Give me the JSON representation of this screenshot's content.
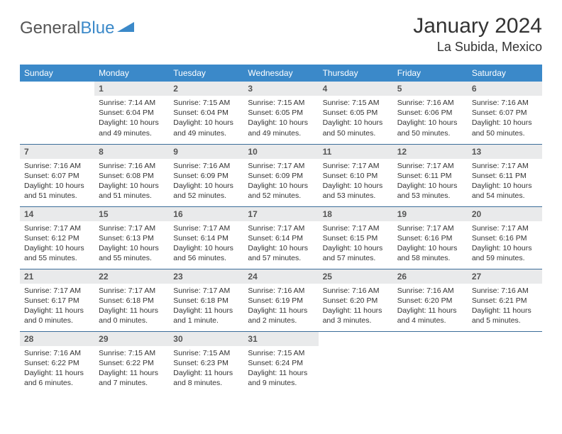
{
  "logo": {
    "text1": "General",
    "text2": "Blue"
  },
  "title": "January 2024",
  "location": "La Subida, Mexico",
  "colors": {
    "header_bg": "#3b89c9",
    "header_text": "#ffffff",
    "daynum_bg": "#e9eaeb",
    "daynum_text": "#555555",
    "border": "#3b6d99",
    "body_text": "#333333",
    "logo_gray": "#555555",
    "logo_blue": "#3b89c9"
  },
  "day_headers": [
    "Sunday",
    "Monday",
    "Tuesday",
    "Wednesday",
    "Thursday",
    "Friday",
    "Saturday"
  ],
  "weeks": [
    [
      null,
      {
        "d": "1",
        "sr": "Sunrise: 7:14 AM",
        "ss": "Sunset: 6:04 PM",
        "dl1": "Daylight: 10 hours",
        "dl2": "and 49 minutes."
      },
      {
        "d": "2",
        "sr": "Sunrise: 7:15 AM",
        "ss": "Sunset: 6:04 PM",
        "dl1": "Daylight: 10 hours",
        "dl2": "and 49 minutes."
      },
      {
        "d": "3",
        "sr": "Sunrise: 7:15 AM",
        "ss": "Sunset: 6:05 PM",
        "dl1": "Daylight: 10 hours",
        "dl2": "and 49 minutes."
      },
      {
        "d": "4",
        "sr": "Sunrise: 7:15 AM",
        "ss": "Sunset: 6:05 PM",
        "dl1": "Daylight: 10 hours",
        "dl2": "and 50 minutes."
      },
      {
        "d": "5",
        "sr": "Sunrise: 7:16 AM",
        "ss": "Sunset: 6:06 PM",
        "dl1": "Daylight: 10 hours",
        "dl2": "and 50 minutes."
      },
      {
        "d": "6",
        "sr": "Sunrise: 7:16 AM",
        "ss": "Sunset: 6:07 PM",
        "dl1": "Daylight: 10 hours",
        "dl2": "and 50 minutes."
      }
    ],
    [
      {
        "d": "7",
        "sr": "Sunrise: 7:16 AM",
        "ss": "Sunset: 6:07 PM",
        "dl1": "Daylight: 10 hours",
        "dl2": "and 51 minutes."
      },
      {
        "d": "8",
        "sr": "Sunrise: 7:16 AM",
        "ss": "Sunset: 6:08 PM",
        "dl1": "Daylight: 10 hours",
        "dl2": "and 51 minutes."
      },
      {
        "d": "9",
        "sr": "Sunrise: 7:16 AM",
        "ss": "Sunset: 6:09 PM",
        "dl1": "Daylight: 10 hours",
        "dl2": "and 52 minutes."
      },
      {
        "d": "10",
        "sr": "Sunrise: 7:17 AM",
        "ss": "Sunset: 6:09 PM",
        "dl1": "Daylight: 10 hours",
        "dl2": "and 52 minutes."
      },
      {
        "d": "11",
        "sr": "Sunrise: 7:17 AM",
        "ss": "Sunset: 6:10 PM",
        "dl1": "Daylight: 10 hours",
        "dl2": "and 53 minutes."
      },
      {
        "d": "12",
        "sr": "Sunrise: 7:17 AM",
        "ss": "Sunset: 6:11 PM",
        "dl1": "Daylight: 10 hours",
        "dl2": "and 53 minutes."
      },
      {
        "d": "13",
        "sr": "Sunrise: 7:17 AM",
        "ss": "Sunset: 6:11 PM",
        "dl1": "Daylight: 10 hours",
        "dl2": "and 54 minutes."
      }
    ],
    [
      {
        "d": "14",
        "sr": "Sunrise: 7:17 AM",
        "ss": "Sunset: 6:12 PM",
        "dl1": "Daylight: 10 hours",
        "dl2": "and 55 minutes."
      },
      {
        "d": "15",
        "sr": "Sunrise: 7:17 AM",
        "ss": "Sunset: 6:13 PM",
        "dl1": "Daylight: 10 hours",
        "dl2": "and 55 minutes."
      },
      {
        "d": "16",
        "sr": "Sunrise: 7:17 AM",
        "ss": "Sunset: 6:14 PM",
        "dl1": "Daylight: 10 hours",
        "dl2": "and 56 minutes."
      },
      {
        "d": "17",
        "sr": "Sunrise: 7:17 AM",
        "ss": "Sunset: 6:14 PM",
        "dl1": "Daylight: 10 hours",
        "dl2": "and 57 minutes."
      },
      {
        "d": "18",
        "sr": "Sunrise: 7:17 AM",
        "ss": "Sunset: 6:15 PM",
        "dl1": "Daylight: 10 hours",
        "dl2": "and 57 minutes."
      },
      {
        "d": "19",
        "sr": "Sunrise: 7:17 AM",
        "ss": "Sunset: 6:16 PM",
        "dl1": "Daylight: 10 hours",
        "dl2": "and 58 minutes."
      },
      {
        "d": "20",
        "sr": "Sunrise: 7:17 AM",
        "ss": "Sunset: 6:16 PM",
        "dl1": "Daylight: 10 hours",
        "dl2": "and 59 minutes."
      }
    ],
    [
      {
        "d": "21",
        "sr": "Sunrise: 7:17 AM",
        "ss": "Sunset: 6:17 PM",
        "dl1": "Daylight: 11 hours",
        "dl2": "and 0 minutes."
      },
      {
        "d": "22",
        "sr": "Sunrise: 7:17 AM",
        "ss": "Sunset: 6:18 PM",
        "dl1": "Daylight: 11 hours",
        "dl2": "and 0 minutes."
      },
      {
        "d": "23",
        "sr": "Sunrise: 7:17 AM",
        "ss": "Sunset: 6:18 PM",
        "dl1": "Daylight: 11 hours",
        "dl2": "and 1 minute."
      },
      {
        "d": "24",
        "sr": "Sunrise: 7:16 AM",
        "ss": "Sunset: 6:19 PM",
        "dl1": "Daylight: 11 hours",
        "dl2": "and 2 minutes."
      },
      {
        "d": "25",
        "sr": "Sunrise: 7:16 AM",
        "ss": "Sunset: 6:20 PM",
        "dl1": "Daylight: 11 hours",
        "dl2": "and 3 minutes."
      },
      {
        "d": "26",
        "sr": "Sunrise: 7:16 AM",
        "ss": "Sunset: 6:20 PM",
        "dl1": "Daylight: 11 hours",
        "dl2": "and 4 minutes."
      },
      {
        "d": "27",
        "sr": "Sunrise: 7:16 AM",
        "ss": "Sunset: 6:21 PM",
        "dl1": "Daylight: 11 hours",
        "dl2": "and 5 minutes."
      }
    ],
    [
      {
        "d": "28",
        "sr": "Sunrise: 7:16 AM",
        "ss": "Sunset: 6:22 PM",
        "dl1": "Daylight: 11 hours",
        "dl2": "and 6 minutes."
      },
      {
        "d": "29",
        "sr": "Sunrise: 7:15 AM",
        "ss": "Sunset: 6:22 PM",
        "dl1": "Daylight: 11 hours",
        "dl2": "and 7 minutes."
      },
      {
        "d": "30",
        "sr": "Sunrise: 7:15 AM",
        "ss": "Sunset: 6:23 PM",
        "dl1": "Daylight: 11 hours",
        "dl2": "and 8 minutes."
      },
      {
        "d": "31",
        "sr": "Sunrise: 7:15 AM",
        "ss": "Sunset: 6:24 PM",
        "dl1": "Daylight: 11 hours",
        "dl2": "and 9 minutes."
      },
      null,
      null,
      null
    ]
  ]
}
